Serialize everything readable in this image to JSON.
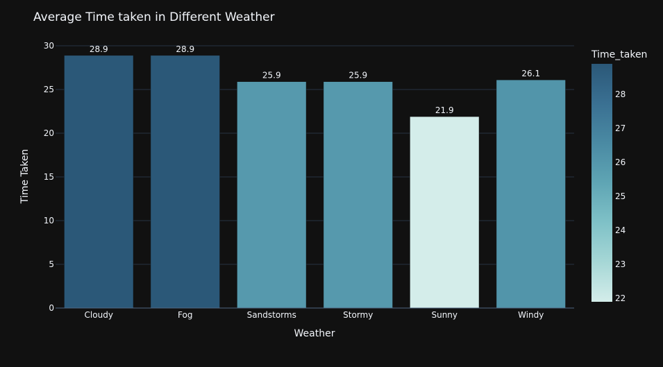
{
  "chart_data": {
    "type": "bar",
    "title": "Average Time taken in Different Weather",
    "xlabel": "Weather",
    "ylabel": "Time Taken",
    "categories": [
      "Cloudy",
      "Fog",
      "Sandstorms",
      "Stormy",
      "Sunny",
      "Windy"
    ],
    "values": [
      28.9,
      28.9,
      25.9,
      25.9,
      21.9,
      26.1
    ],
    "value_labels": [
      "28.9",
      "28.9",
      "25.9",
      "25.9",
      "21.9",
      "26.1"
    ],
    "ylim": [
      0,
      30
    ],
    "yticks": [
      0,
      5,
      10,
      15,
      20,
      25,
      30
    ],
    "grid": true,
    "colorbar": {
      "title": "Time_taken",
      "range": [
        21.9,
        28.9
      ],
      "ticks": [
        22,
        23,
        24,
        25,
        26,
        27,
        28
      ],
      "colorscale": [
        "#d4edea",
        "#a6d7d6",
        "#7fc1c7",
        "#5fa5b4",
        "#4a8aa3",
        "#3a7092",
        "#2b5878"
      ]
    },
    "colors": {
      "background": "#111111",
      "grid": "#283442",
      "text": "#f2f5fa",
      "tick_text": "#f2f5fa"
    }
  }
}
